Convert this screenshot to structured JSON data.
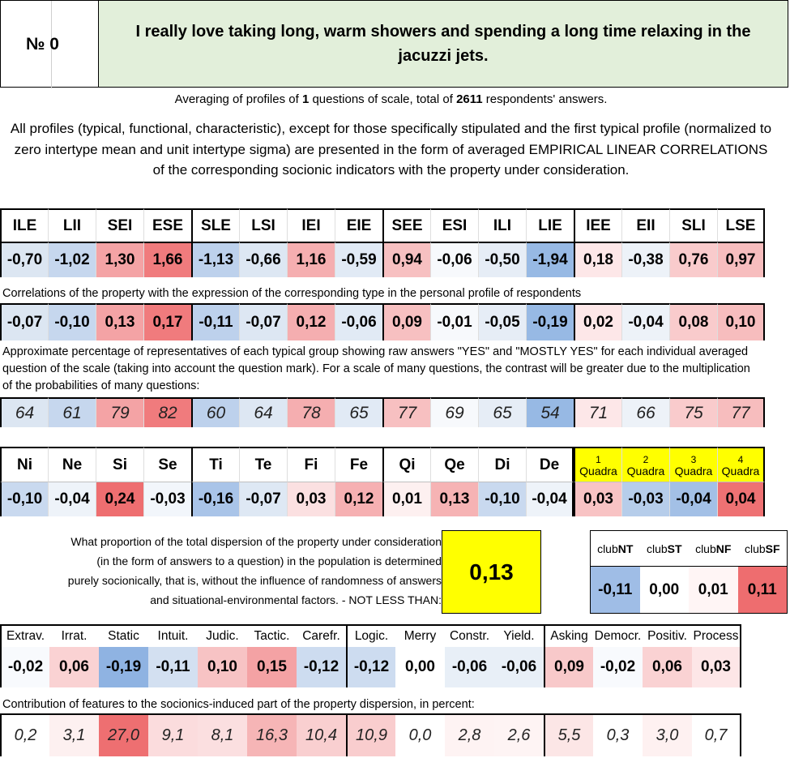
{
  "header": {
    "num_label": "№ 0",
    "title": "I really love taking long, warm showers and spending a long time relaxing in the jacuzzi jets."
  },
  "averaging": {
    "prefix": "Averaging of profiles of ",
    "questions": "1",
    "middle": " questions of scale, total of ",
    "answers": "2611",
    "suffix": " respondents' answers."
  },
  "description": "All profiles (typical, functional, characteristic), except for those specifically stipulated and the first typical profile (normalized to zero intertype mean and unit intertype sigma) are presented in the form of averaged EMPIRICAL LINEAR CORRELATIONS of the corresponding socionic indicators with the property under consideration.",
  "types": {
    "labels": [
      "ILE",
      "LII",
      "SEI",
      "ESE",
      "SLE",
      "LSI",
      "IEI",
      "EIE",
      "SEE",
      "ESI",
      "ILI",
      "LIE",
      "IEE",
      "EII",
      "SLI",
      "LSE"
    ],
    "profile": [
      "-0,70",
      "-1,02",
      "1,30",
      "1,66",
      "-1,13",
      "-0,66",
      "1,16",
      "-0,59",
      "0,94",
      "-0,06",
      "-0,50",
      "-1,94",
      "0,18",
      "-0,38",
      "0,76",
      "0,97"
    ],
    "profile_colors": [
      "#dce6f2",
      "#c6d7ee",
      "#f4a3a5",
      "#f07b7d",
      "#bdd1ec",
      "#dde7f3",
      "#f5aeb0",
      "#e1eaf5",
      "#f7c0c1",
      "#f7f9fc",
      "#e6edf6",
      "#97b9e4",
      "#fde7e8",
      "#edf2f8",
      "#f9cbcc",
      "#f7bdbe"
    ]
  },
  "correlations": {
    "note": "Correlations of the property with the expression of the corresponding type in the personal profile of respondents",
    "values": [
      "-0,07",
      "-0,10",
      "0,13",
      "0,17",
      "-0,11",
      "-0,07",
      "0,12",
      "-0,06",
      "0,09",
      "-0,01",
      "-0,05",
      "-0,19",
      "0,02",
      "-0,04",
      "0,08",
      "0,10"
    ],
    "colors": [
      "#dce6f2",
      "#c6d7ee",
      "#f4a3a5",
      "#f07b7d",
      "#bdd1ec",
      "#dde7f3",
      "#f5aeb0",
      "#e1eaf5",
      "#f7c0c1",
      "#f7f9fc",
      "#e6edf6",
      "#97b9e4",
      "#fde7e8",
      "#edf2f8",
      "#f9cbcc",
      "#f7bdbe"
    ]
  },
  "percentages": {
    "note": "Approximate percentage of representatives of each typical group showing raw answers \"YES\" and \"MOSTLY YES\" for each individual averaged question of the scale (taking into account the question mark). For a scale of many questions, the contrast will be greater due to the multiplication of the probabilities of many questions:",
    "values": [
      "64",
      "61",
      "79",
      "82",
      "60",
      "64",
      "78",
      "65",
      "77",
      "69",
      "65",
      "54",
      "71",
      "66",
      "75",
      "77"
    ],
    "colors": [
      "#dce6f2",
      "#c6d7ee",
      "#f4a3a5",
      "#f07b7d",
      "#bdd1ec",
      "#dde7f3",
      "#f5aeb0",
      "#e1eaf5",
      "#f7c0c1",
      "#f7f9fc",
      "#e6edf6",
      "#97b9e4",
      "#fde7e8",
      "#edf2f8",
      "#f9cbcc",
      "#f7bdbe"
    ]
  },
  "functions": {
    "labels": [
      "Ni",
      "Ne",
      "Si",
      "Se",
      "Ti",
      "Te",
      "Fi",
      "Fe",
      "Qi",
      "Qe",
      "Di",
      "De"
    ],
    "values": [
      "-0,10",
      "-0,04",
      "0,24",
      "-0,03",
      "-0,16",
      "-0,07",
      "0,03",
      "0,12",
      "0,01",
      "0,13",
      "-0,10",
      "-0,04"
    ],
    "colors": [
      "#c9d9ef",
      "#eef3f9",
      "#ee6e70",
      "#f2f6fb",
      "#a9c4e8",
      "#dee8f4",
      "#fbe0e1",
      "#f6b0b2",
      "#fdf0f0",
      "#f6b3b4",
      "#c9d9ef",
      "#eef3f9"
    ]
  },
  "quadras": {
    "nums": [
      "1",
      "2",
      "3",
      "4"
    ],
    "word": "Quadra",
    "values": [
      "0,03",
      "-0,03",
      "-0,04",
      "0,04"
    ],
    "colors": [
      "#f8c3c4",
      "#b6cdea",
      "#a3c0e6",
      "#ee7173"
    ]
  },
  "dispersion": {
    "lines": [
      "What proportion of the total dispersion of the property under consideration",
      "(in the form of answers to a question) in the population is determined",
      "purely socionically, that is, without the influence of randomness of answers",
      "and situational-environmental factors. - NOT LESS THAN:"
    ],
    "value": "0,13"
  },
  "clubs": {
    "prefix": "club",
    "names": [
      "NT",
      "ST",
      "NF",
      "SF"
    ],
    "values": [
      "-0,11",
      "0,00",
      "0,01",
      "0,11"
    ],
    "colors": [
      "#9fbde6",
      "#ffffff",
      "#fff5f5",
      "#ee6d6f"
    ]
  },
  "features": {
    "labels": [
      "Extrav.",
      "Irrat.",
      "Static",
      "Intuit.",
      "Judic.",
      "Tactic.",
      "Carefr.",
      "Logic.",
      "Merry",
      "Constr.",
      "Yield.",
      "Asking",
      "Democr.",
      "Positiv.",
      "Process"
    ],
    "values": [
      "-0,02",
      "0,06",
      "-0,19",
      "-0,11",
      "0,10",
      "0,15",
      "-0,12",
      "-0,12",
      "0,00",
      "-0,06",
      "-0,06",
      "0,09",
      "-0,02",
      "0,06",
      "0,03"
    ],
    "colors": [
      "#f8fafd",
      "#fad2d3",
      "#8fb3e2",
      "#d3e0f1",
      "#f7c3c4",
      "#f4a2a4",
      "#cddcf0",
      "#cddcf0",
      "#ffffff",
      "#e8eff7",
      "#e8eff7",
      "#f8c9ca",
      "#f8fafd",
      "#fad2d3",
      "#fde6e7"
    ],
    "note": "Contribution of features to the sociоnics-induced part of the property dispersion, in percent:",
    "contrib": [
      "0,2",
      "3,1",
      "27,0",
      "9,1",
      "8,1",
      "16,3",
      "10,4",
      "10,9",
      "0,0",
      "2,8",
      "2,6",
      "5,5",
      "0,3",
      "3,0",
      "0,7"
    ],
    "contrib_colors": [
      "#ffffff",
      "#fdf0f0",
      "#ee6f71",
      "#fbdcdd",
      "#fbdfe0",
      "#f6b5b6",
      "#f9cfd0",
      "#f9cdce",
      "#ffffff",
      "#fef3f3",
      "#fef4f4",
      "#fce6e6",
      "#ffffff",
      "#fef1f1",
      "#ffffff"
    ]
  }
}
